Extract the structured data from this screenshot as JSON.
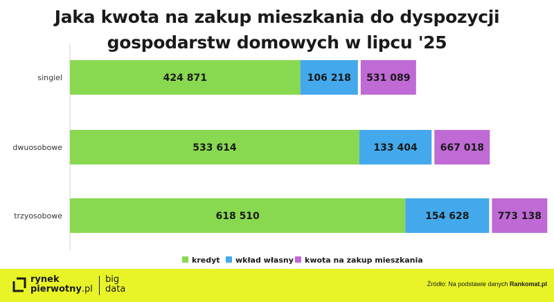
{
  "title_line1": "Jaka kwota na zakup mieszkania do dyspozycji",
  "title_line2": "gospodarstw domowych w lipcu '25",
  "chart_data": {
    "type": "bar",
    "orientation": "horizontal",
    "stacked_pairs": true,
    "categories": [
      "singiel",
      "dwuosobowe",
      "trzyosobowe"
    ],
    "series": [
      {
        "name": "kredyt",
        "color": "#88d94f",
        "values": [
          424871,
          533614,
          618510
        ],
        "labels": [
          "424 871",
          "533 614",
          "618 510"
        ]
      },
      {
        "name": "wkład własny",
        "color": "#43a9ec",
        "values": [
          106218,
          133404,
          154628
        ],
        "labels": [
          "106 218",
          "133 404",
          "154 628"
        ]
      },
      {
        "name": "kwota na zakup mieszkania",
        "color": "#c06ad5",
        "values": [
          531089,
          667018,
          773138
        ],
        "labels": [
          "531 089",
          "667 018",
          "773 138"
        ]
      }
    ],
    "legend_position": "bottom",
    "grid": false
  },
  "footer": {
    "logo_line1": "rynek",
    "logo_line2a": "pierwotny",
    "logo_line2b": ".pl",
    "brand2_line1": "big",
    "brand2_line2": "data",
    "source_prefix": "Źródło: Na podstawie danych ",
    "source_name": "Rankomat.pl"
  },
  "colors": {
    "footer_bg": "#e8f428",
    "axis": "#d0d0d0"
  }
}
